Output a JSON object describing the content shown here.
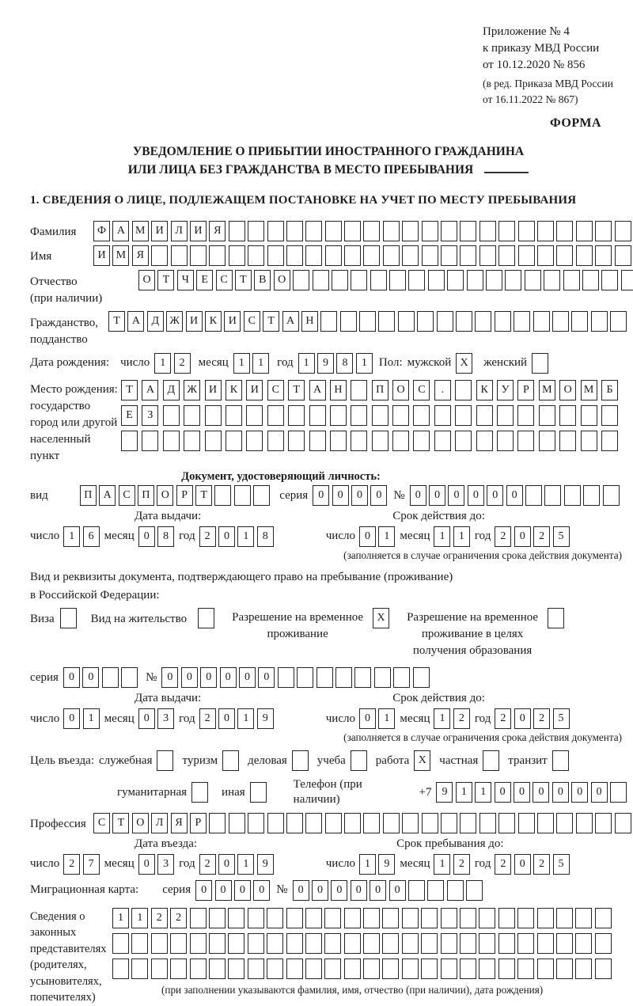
{
  "ink": "#1c1c1c",
  "header": {
    "line1": "Приложение № 4",
    "line2": "к приказу МВД России",
    "line3": "от 10.12.2020 № 856",
    "line4": "(в ред. Приказа МВД России",
    "line5": "от 16.11.2022 № 867)",
    "form_label": "ФОРМА"
  },
  "title": {
    "line1": "УВЕДОМЛЕНИЕ О ПРИБЫТИИ ИНОСТРАННОГО ГРАЖДАНИНА",
    "line2": "ИЛИ ЛИЦА БЕЗ ГРАЖДАНСТВА В МЕСТО ПРЕБЫВАНИЯ"
  },
  "section1_heading": "1. СВЕДЕНИЯ О ЛИЦЕ, ПОДЛЕЖАЩЕМ ПОСТАНОВКЕ НА УЧЕТ ПО МЕСТУ ПРЕБЫВАНИЯ",
  "surname": {
    "label": "Фамилия",
    "cells": {
      "len": 28,
      "value": "ФАМИЛИЯ"
    }
  },
  "name": {
    "label": "Имя",
    "cells": {
      "len": 28,
      "value": "ИМЯ"
    }
  },
  "patronymic": {
    "label": "Отчество",
    "sublabel": "(при наличии)",
    "cells": {
      "len": 26,
      "value": "ОТЧЕСТВО"
    }
  },
  "citizenship": {
    "label": "Гражданство,",
    "sublabel": "подданство",
    "cells": {
      "len": 27,
      "value": "ТАДЖИКИСТАН"
    }
  },
  "birth_date": {
    "label": "Дата рождения:",
    "day_label": "число",
    "day": {
      "len": 2,
      "value": "12"
    },
    "month_label": "месяц",
    "month": {
      "len": 2,
      "value": "11"
    },
    "year_label": "год",
    "year": {
      "len": 4,
      "value": "1981"
    },
    "sex_label": "Пол:",
    "male_label": "мужской",
    "male_box": {
      "len": 1,
      "value": "X"
    },
    "female_label": "женский",
    "female_box": {
      "len": 1,
      "value": ""
    }
  },
  "birth_place": {
    "label1": "Место рождения:",
    "label2": "государство",
    "label3": "город или другой",
    "label4": "населенный пункт",
    "rows": [
      {
        "len": 24,
        "value": "ТАДЖИКИСТАН ПОС. КУРМОМБ"
      },
      {
        "len": 24,
        "value": "ЕЗ"
      },
      {
        "len": 24,
        "value": ""
      }
    ]
  },
  "identity_doc": {
    "heading": "Документ, удостоверяющий личность:",
    "kind_label": "вид",
    "kind": {
      "len": 10,
      "value": "ПАСПОРТ"
    },
    "series_label": "серия",
    "series": {
      "len": 4,
      "value": "0000"
    },
    "number_label": "№",
    "number": {
      "len": 11,
      "value": "000000"
    },
    "issue_heading": "Дата выдачи:",
    "expiry_heading": "Срок действия до:",
    "day_label": "число",
    "month_label": "месяц",
    "year_label": "год",
    "issue": {
      "day": {
        "len": 2,
        "value": "16"
      },
      "month": {
        "len": 2,
        "value": "08"
      },
      "year": {
        "len": 4,
        "value": "2018"
      }
    },
    "expiry": {
      "day": {
        "len": 2,
        "value": "01"
      },
      "month": {
        "len": 2,
        "value": "11"
      },
      "year": {
        "len": 4,
        "value": "2025"
      }
    },
    "note": "(заполняется в случае ограничения срока действия документа)"
  },
  "residence_doc": {
    "intro1": "Вид и реквизиты документа, подтверждающего право на пребывание (проживание)",
    "intro2": "в Российской Федерации:",
    "options": [
      {
        "label": "Виза",
        "box": {
          "len": 1,
          "value": ""
        }
      },
      {
        "label": "Вид на жительство",
        "box": {
          "len": 1,
          "value": ""
        }
      },
      {
        "label": "Разрешение на временное\nпроживание",
        "box": {
          "len": 1,
          "value": "X"
        }
      },
      {
        "label": "Разрешение на временное\nпроживание в целях\nполучения образования",
        "box": {
          "len": 1,
          "value": ""
        }
      }
    ],
    "series_label": "серия",
    "series": {
      "len": 4,
      "value": "00"
    },
    "number_label": "№",
    "number": {
      "len": 14,
      "value": "000000"
    },
    "issue_heading": "Дата выдачи:",
    "expiry_heading": "Срок действия до:",
    "day_label": "число",
    "month_label": "месяц",
    "year_label": "год",
    "issue": {
      "day": {
        "len": 2,
        "value": "01"
      },
      "month": {
        "len": 2,
        "value": "03"
      },
      "year": {
        "len": 4,
        "value": "2019"
      }
    },
    "expiry": {
      "day": {
        "len": 2,
        "value": "01"
      },
      "month": {
        "len": 2,
        "value": "12"
      },
      "year": {
        "len": 4,
        "value": "2025"
      }
    },
    "note": "(заполняется в случае ограничения срока действия документа)"
  },
  "purpose": {
    "label": "Цель въезда:",
    "options": [
      {
        "label": "служебная",
        "box": {
          "len": 1,
          "value": ""
        }
      },
      {
        "label": "туризм",
        "box": {
          "len": 1,
          "value": ""
        }
      },
      {
        "label": "деловая",
        "box": {
          "len": 1,
          "value": ""
        }
      },
      {
        "label": "учеба",
        "box": {
          "len": 1,
          "value": ""
        }
      },
      {
        "label": "работа",
        "box": {
          "len": 1,
          "value": "X"
        }
      },
      {
        "label": "частная",
        "box": {
          "len": 1,
          "value": ""
        }
      },
      {
        "label": "транзит",
        "box": {
          "len": 1,
          "value": ""
        }
      },
      {
        "label": "гуманитарная",
        "box": {
          "len": 1,
          "value": ""
        }
      },
      {
        "label": "иная",
        "box": {
          "len": 1,
          "value": ""
        }
      }
    ],
    "phone_label": "Телефон (при наличии)",
    "phone_prefix": "+7",
    "phone": {
      "len": 10,
      "value": "911000000"
    }
  },
  "profession": {
    "label": "Профессия",
    "cells": {
      "len": 28,
      "value": "СТОЛЯР"
    }
  },
  "entry": {
    "date_heading": "Дата въезда:",
    "until_heading": "Срок пребывания до:",
    "day_label": "число",
    "month_label": "месяц",
    "year_label": "год",
    "date": {
      "day": {
        "len": 2,
        "value": "27"
      },
      "month": {
        "len": 2,
        "value": "03"
      },
      "year": {
        "len": 4,
        "value": "2019"
      }
    },
    "until": {
      "day": {
        "len": 2,
        "value": "19"
      },
      "month": {
        "len": 2,
        "value": "12"
      },
      "year": {
        "len": 4,
        "value": "2025"
      }
    }
  },
  "migration_card": {
    "label": "Миграционная карта:",
    "series_label": "серия",
    "series": {
      "len": 4,
      "value": "0000"
    },
    "number_label": "№",
    "number": {
      "len": 10,
      "value": "000000"
    }
  },
  "representatives": {
    "label1": "Сведения о",
    "label2": "законных",
    "label3": "представителях",
    "label4": "(родителях,",
    "label5": "усыновителях,",
    "label6": "попечителях)",
    "rows": [
      {
        "len": 26,
        "value": "1122"
      },
      {
        "len": 26,
        "value": ""
      },
      {
        "len": 26,
        "value": ""
      }
    ],
    "note": "(при заполнении указываются фамилия, имя, отчество (при наличии), дата рождения)"
  }
}
